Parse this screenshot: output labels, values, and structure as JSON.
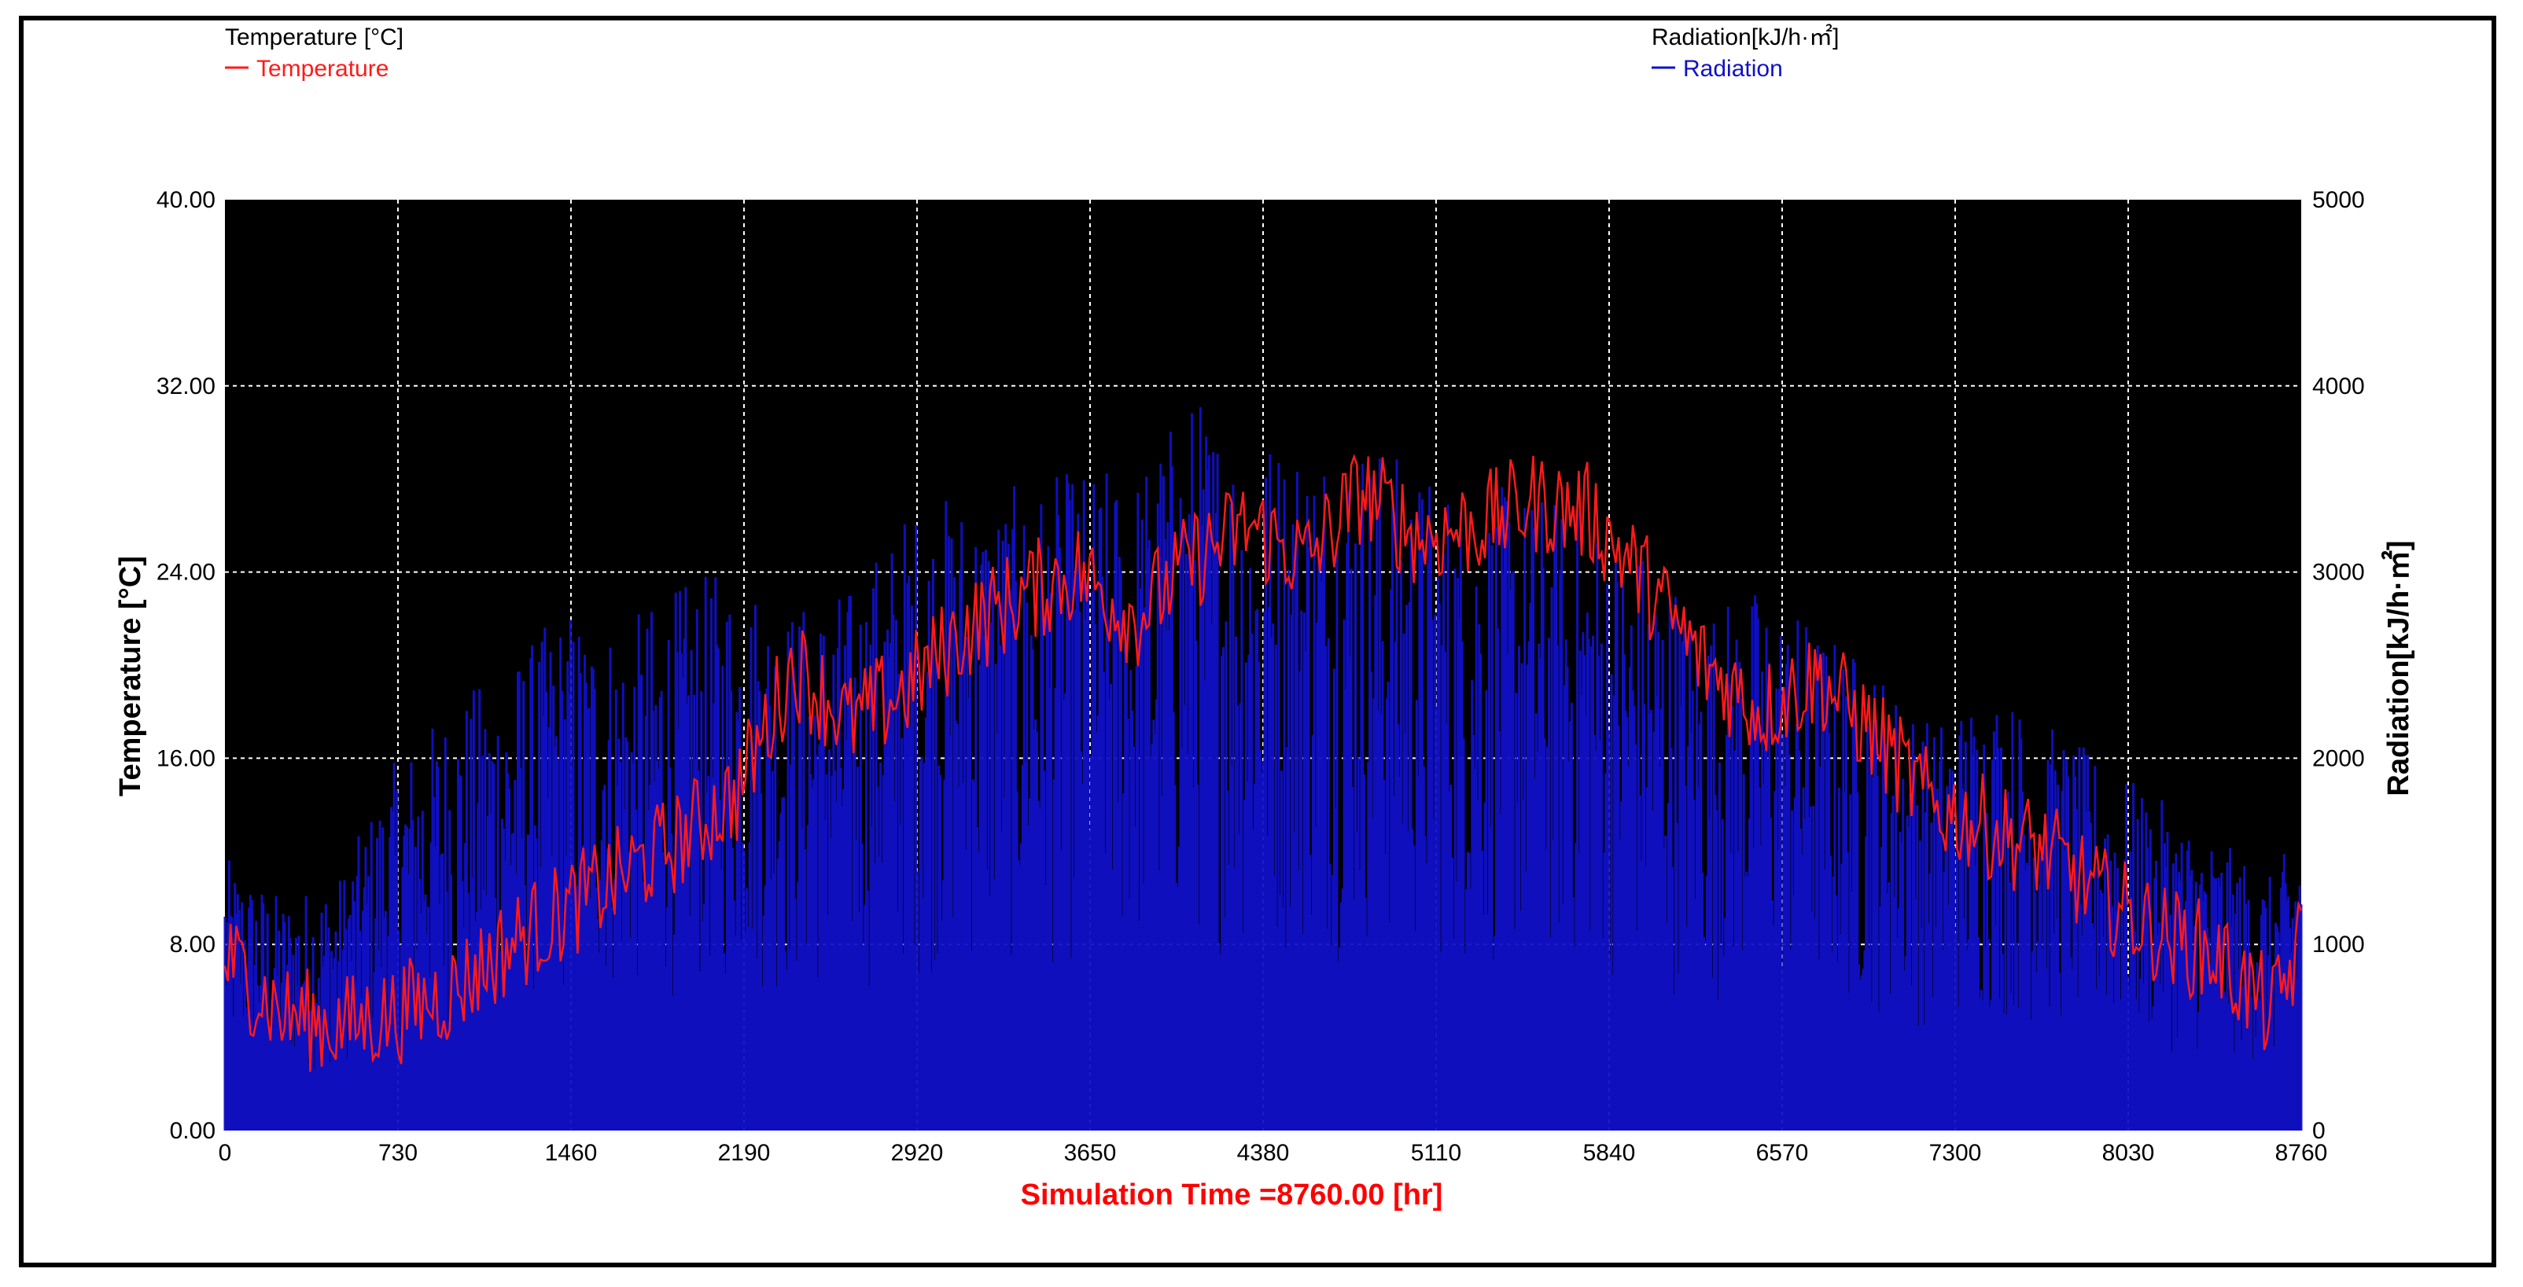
{
  "legend": {
    "left": {
      "title": "Temperature [°C]",
      "entry": "Temperature"
    },
    "right": {
      "title": "Radiation[kJ/h·㎡]",
      "entry": "Radiation"
    }
  },
  "colors": {
    "temperature": "#ff1a1a",
    "radiation": "#1010c8",
    "plot_bg": "#000000",
    "grid": "#ffffff",
    "xlabel": "#ff0000"
  },
  "chart_data": {
    "type": "line",
    "xlabel": "Simulation Time =8760.00 [hr]",
    "ylabel_left": "Temperature [°C]",
    "ylabel_right": "Radiation[kJ/h·㎡]",
    "xlim": [
      0,
      8760
    ],
    "ylim_left": [
      0,
      40
    ],
    "ylim_right": [
      0,
      5000
    ],
    "grid": true,
    "x_ticks": [
      "0",
      "730",
      "1460",
      "2190",
      "2920",
      "3650",
      "4380",
      "5110",
      "5840",
      "6570",
      "7300",
      "8030",
      "8760"
    ],
    "y_left_ticks": [
      "0.00",
      "8.00",
      "16.00",
      "24.00",
      "32.00",
      "40.00"
    ],
    "y_right_ticks": [
      "0",
      "1000",
      "2000",
      "3000",
      "4000",
      "5000"
    ],
    "series": [
      {
        "name": "Temperature",
        "axis": "left",
        "x": [
          0,
          240,
          480,
          720,
          960,
          1200,
          1440,
          1680,
          1920,
          2160,
          2400,
          2640,
          2880,
          3120,
          3360,
          3600,
          3840,
          4080,
          4320,
          4560,
          4800,
          5040,
          5280,
          5520,
          5760,
          6000,
          6240,
          6480,
          6720,
          6960,
          7200,
          7440,
          7680,
          7920,
          8160,
          8400,
          8640,
          8760
        ],
        "y": [
          7.5,
          5.0,
          4.5,
          5.0,
          6.0,
          8.0,
          9.5,
          11.0,
          12.5,
          14.5,
          20.0,
          17.5,
          19.0,
          21.5,
          23.0,
          24.0,
          22.0,
          24.5,
          26.0,
          24.5,
          27.5,
          25.5,
          26.0,
          27.0,
          26.5,
          23.5,
          20.0,
          18.0,
          19.5,
          17.0,
          14.0,
          13.0,
          12.0,
          10.0,
          8.5,
          7.5,
          5.0,
          8.0
        ]
      },
      {
        "name": "Radiation",
        "axis": "right",
        "x": [
          0,
          240,
          480,
          720,
          960,
          1200,
          1440,
          1680,
          1920,
          2160,
          2400,
          2640,
          2880,
          3120,
          3360,
          3600,
          3840,
          4080,
          4320,
          4560,
          4800,
          5040,
          5280,
          5520,
          5760,
          6000,
          6240,
          6480,
          6720,
          6960,
          7200,
          7440,
          7680,
          7920,
          8160,
          8400,
          8640,
          8760
        ],
        "y": [
          1400,
          1200,
          1300,
          1900,
          2200,
          2400,
          2700,
          2600,
          2800,
          2900,
          2700,
          2800,
          3200,
          3300,
          3300,
          3400,
          3400,
          3800,
          3600,
          3600,
          3600,
          3400,
          3300,
          3300,
          3200,
          3000,
          2700,
          2800,
          2600,
          2400,
          2100,
          2300,
          2100,
          1900,
          1700,
          1500,
          1300,
          1600
        ]
      }
    ]
  }
}
